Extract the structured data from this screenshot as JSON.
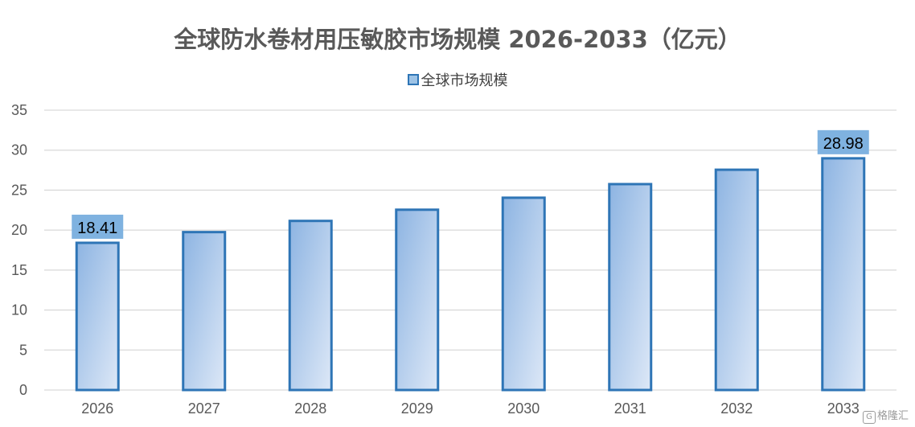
{
  "chart_data": {
    "type": "bar",
    "title": "全球防水卷材用压敏胶市场规模 2026-2033（亿元）",
    "legend": "全球市场规模",
    "legend_position": "top",
    "categories": [
      "2026",
      "2027",
      "2028",
      "2029",
      "2030",
      "2031",
      "2032",
      "2033"
    ],
    "series": [
      {
        "name": "全球市场规模",
        "values": [
          18.41,
          19.75,
          21.15,
          22.55,
          24.05,
          25.75,
          27.55,
          28.98
        ]
      }
    ],
    "data_labels": [
      {
        "category": "2026",
        "text": "18.41"
      },
      {
        "category": "2033",
        "text": "28.98"
      }
    ],
    "y_ticks": [
      "0",
      "5",
      "10",
      "15",
      "20",
      "25",
      "30",
      "35"
    ],
    "ylim": [
      0,
      35
    ],
    "grid": true,
    "colors": {
      "bar_border": "#2e75b6",
      "bar_fill_dark": "#8db4e2",
      "bar_fill_light": "#dde8f7",
      "label_bg": "#7fb2e0",
      "grid": "#d9d9d9"
    }
  },
  "watermark": {
    "icon": "gelonghui-logo-icon",
    "text": "格隆汇"
  }
}
